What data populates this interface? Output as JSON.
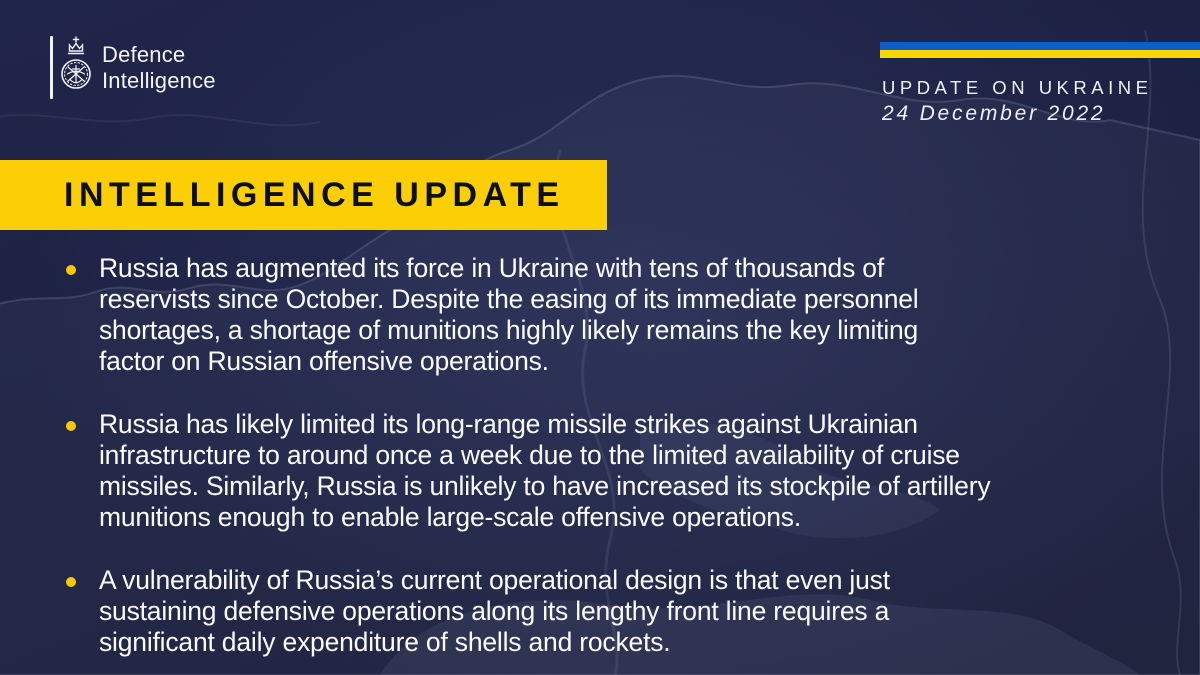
{
  "colors": {
    "background": "#1d2244",
    "map_line": "rgba(205,210,235,0.16)",
    "banner_yellow": "#fbce05",
    "banner_text": "#0d0f16",
    "bullet_yellow": "#f6c70a",
    "flag_blue": "#0f5ec6",
    "flag_yellow": "#ffd500",
    "text_white": "#fafbfe"
  },
  "logo": {
    "line1": "Defence",
    "line2": "Intelligence"
  },
  "masthead": {
    "kicker": "UPDATE ON UKRAINE",
    "date": "24 December 2022"
  },
  "banner": {
    "title": "INTELLIGENCE UPDATE"
  },
  "bullets": [
    {
      "lines": [
        "Russia has augmented its force in Ukraine with tens of thousands of",
        "reservists since October. Despite the easing of its immediate personnel",
        "shortages, a shortage of munitions highly likely remains the key limiting",
        "factor on Russian offensive operations."
      ]
    },
    {
      "lines": [
        "Russia has likely limited its long-range missile strikes against Ukrainian",
        "infrastructure to around once a week due to the limited availability of cruise",
        "missiles. Similarly, Russia is unlikely to have increased its stockpile of artillery",
        "munitions enough to enable large-scale offensive operations."
      ]
    },
    {
      "lines": [
        "A vulnerability of Russia’s current operational design is that even just",
        "sustaining defensive operations along its lengthy front line requires a",
        "significant daily expenditure of shells and rockets."
      ]
    }
  ]
}
